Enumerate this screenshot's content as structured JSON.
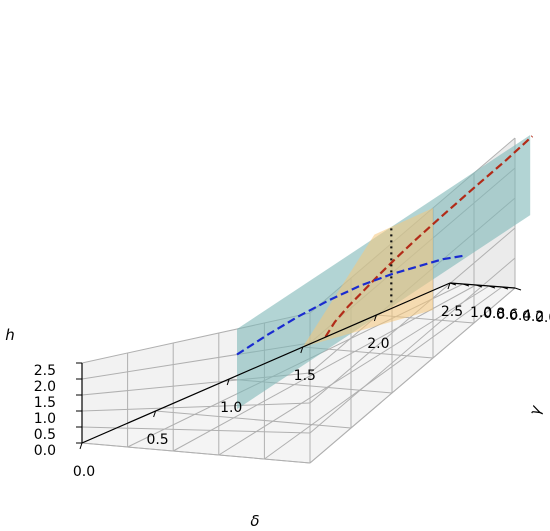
{
  "chart_data": {
    "type": "3d-line",
    "title": "",
    "axes": {
      "x": {
        "label": "δ",
        "ticks": [
          "0.0",
          "0.5",
          "1.0",
          "1.5",
          "2.0",
          "2.5"
        ],
        "range": [
          0,
          2.5
        ]
      },
      "y": {
        "label": "γ",
        "ticks": [
          "0.0",
          "0.2",
          "0.4",
          "0.6",
          "0.8",
          "1.0"
        ],
        "range": [
          0,
          1
        ]
      },
      "z": {
        "label": "h",
        "ticks": [
          "0.0",
          "0.5",
          "1.0",
          "1.5",
          "2.0",
          "2.5"
        ],
        "range": [
          0,
          2.5
        ]
      }
    },
    "grid": true,
    "planes": [
      {
        "kind": "constant-gamma",
        "gamma": 0.32,
        "color": "#7fb8b8",
        "opacity": 0.6
      },
      {
        "kind": "constant-delta",
        "delta": 1.5,
        "color": "#f6c77a",
        "opacity": 0.55
      }
    ],
    "series": [
      {
        "style": "dashed",
        "color": "#b22b18",
        "points": [
          [
            0.86,
            0.32,
            1.2
          ],
          [
            0.95,
            0.32,
            1.37
          ],
          [
            1.08,
            0.32,
            1.5
          ],
          [
            1.22,
            0.32,
            1.6
          ],
          [
            1.38,
            0.32,
            1.72
          ],
          [
            1.55,
            0.32,
            1.83
          ],
          [
            1.75,
            0.32,
            1.94
          ],
          [
            2.0,
            0.32,
            2.06
          ],
          [
            2.3,
            0.32,
            2.19
          ],
          [
            2.62,
            0.32,
            2.32
          ],
          [
            2.87,
            0.32,
            2.45
          ]
        ]
      },
      {
        "style": "dashed",
        "color": "#1a2bd0",
        "points": [
          [
            0.0,
            0.32,
            2.0
          ],
          [
            0.3,
            0.32,
            1.99
          ],
          [
            0.6,
            0.32,
            1.95
          ],
          [
            0.9,
            0.32,
            1.87
          ],
          [
            1.2,
            0.32,
            1.75
          ],
          [
            1.5,
            0.32,
            1.57
          ],
          [
            1.8,
            0.32,
            1.35
          ],
          [
            2.0,
            0.32,
            1.2
          ],
          [
            2.2,
            0.32,
            1.0
          ]
        ]
      },
      {
        "style": "dotted",
        "color": "#111111",
        "points": [
          [
            1.5,
            0.32,
            1.02
          ],
          [
            1.5,
            0.32,
            2.5
          ]
        ]
      }
    ]
  }
}
